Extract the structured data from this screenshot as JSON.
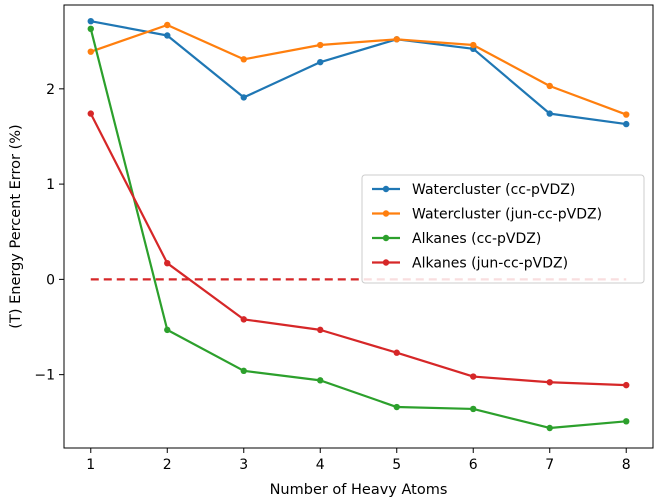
{
  "chart_data": {
    "type": "line",
    "title": "",
    "xlabel": "Number of Heavy Atoms",
    "ylabel": "(T) Energy Percent Error (%)",
    "x": [
      1,
      2,
      3,
      4,
      5,
      6,
      7,
      8
    ],
    "xticks": [
      "1",
      "2",
      "3",
      "4",
      "5",
      "6",
      "7",
      "8"
    ],
    "yticks": [
      -1,
      0,
      1,
      2
    ],
    "ytick_labels": [
      "−1",
      "0",
      "1",
      "2"
    ],
    "xlim": [
      0.65,
      8.35
    ],
    "ylim": [
      -1.77,
      2.88
    ],
    "grid": false,
    "legend_position": "center-right",
    "reference_line": {
      "y": 0,
      "x_range": [
        1,
        8
      ],
      "color": "#d62728",
      "style": "dashed"
    },
    "series": [
      {
        "name": "Watercluster (cc-pVDZ)",
        "color": "#1f77b4",
        "values": [
          2.71,
          2.56,
          1.91,
          2.28,
          2.52,
          2.42,
          1.74,
          1.63
        ]
      },
      {
        "name": "Watercluster (jun-cc-pVDZ)",
        "color": "#ff7f0e",
        "values": [
          2.39,
          2.67,
          2.31,
          2.46,
          2.52,
          2.46,
          2.03,
          1.73
        ]
      },
      {
        "name": "Alkanes (cc-pVDZ)",
        "color": "#2ca02c",
        "values": [
          2.63,
          -0.53,
          -0.96,
          -1.06,
          -1.34,
          -1.36,
          -1.56,
          -1.49
        ]
      },
      {
        "name": "Alkanes (jun-cc-pVDZ)",
        "color": "#d62728",
        "values": [
          1.74,
          0.17,
          -0.42,
          -0.53,
          -0.77,
          -1.02,
          -1.08,
          -1.11
        ]
      }
    ]
  }
}
